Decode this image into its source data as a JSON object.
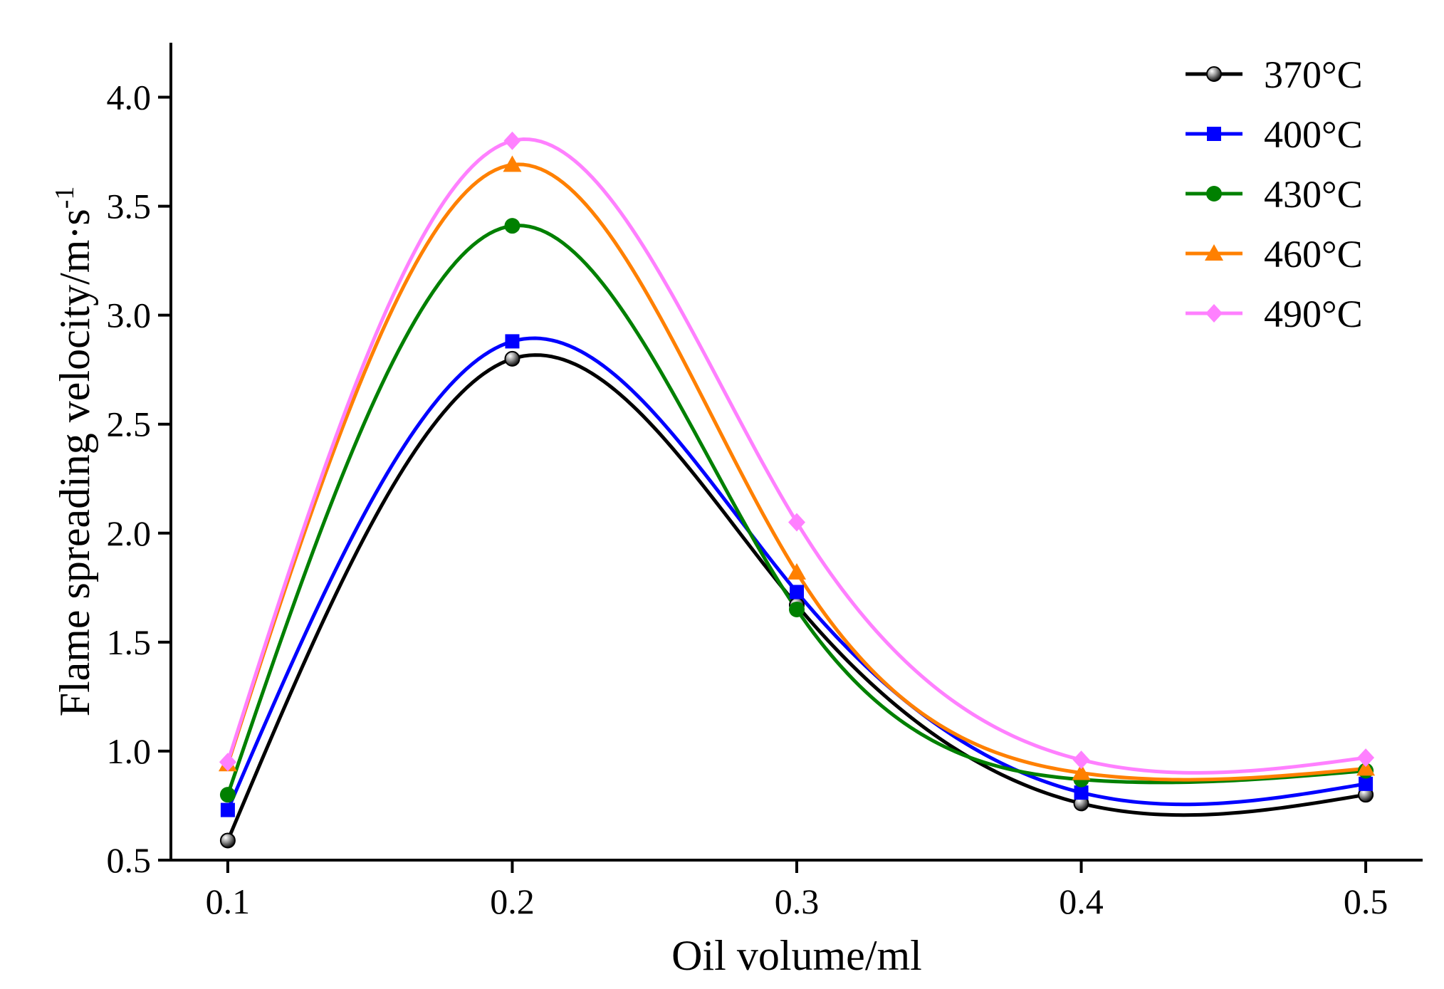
{
  "chart_data": {
    "type": "line",
    "title": "",
    "xlabel": "Oil volume/ml",
    "ylabel": "Flame spreading velocity/m·s",
    "ylabel_superscript": "-1",
    "xlim": [
      0.08,
      0.52
    ],
    "ylim": [
      0.5,
      4.25
    ],
    "x": [
      0.1,
      0.2,
      0.3,
      0.4,
      0.5
    ],
    "x_tick_labels": [
      "0.1",
      "0.2",
      "0.3",
      "0.4",
      "0.5"
    ],
    "y_ticks": [
      0.5,
      1.0,
      1.5,
      2.0,
      2.5,
      3.0,
      3.5,
      4.0
    ],
    "y_tick_labels": [
      "0.5",
      "1.0",
      "1.5",
      "2.0",
      "2.5",
      "3.0",
      "3.5",
      "4.0"
    ],
    "grid": false,
    "legend_position": "top-right",
    "series": [
      {
        "name": "370°C",
        "color": "#000000",
        "marker": "sphere",
        "values": [
          0.59,
          2.8,
          1.67,
          0.76,
          0.8
        ]
      },
      {
        "name": "400°C",
        "color": "#0000ff",
        "marker": "square",
        "values": [
          0.73,
          2.88,
          1.73,
          0.81,
          0.85
        ]
      },
      {
        "name": "430°C",
        "color": "#008000",
        "marker": "circle",
        "values": [
          0.8,
          3.41,
          1.65,
          0.87,
          0.91
        ]
      },
      {
        "name": "460°C",
        "color": "#ff8000",
        "marker": "triangle",
        "values": [
          0.94,
          3.69,
          1.82,
          0.9,
          0.92
        ]
      },
      {
        "name": "490°C",
        "color": "#ff80ff",
        "marker": "diamond",
        "values": [
          0.95,
          3.8,
          2.05,
          0.96,
          0.97
        ]
      }
    ]
  }
}
